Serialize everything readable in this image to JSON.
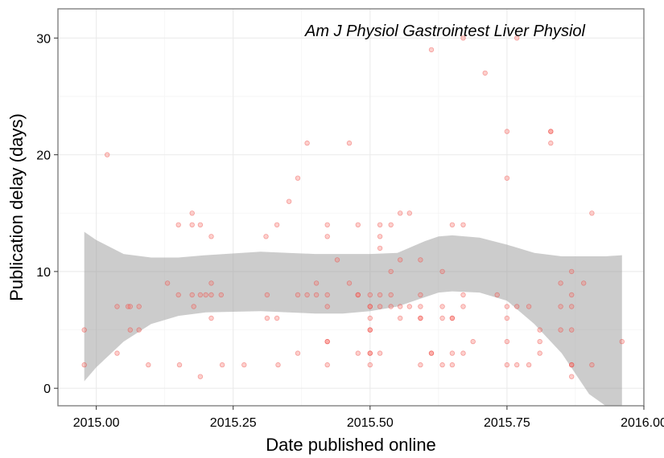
{
  "chart_data": {
    "type": "scatter",
    "title": "",
    "annotation": "Am J Physiol Gastrointest Liver Physiol",
    "xlabel": "Date published online",
    "ylabel": "Publication delay (days)",
    "xlim": [
      2014.93,
      2016.0
    ],
    "ylim": [
      -1.5,
      32.5
    ],
    "x_ticks": [
      2015.0,
      2015.25,
      2015.5,
      2015.75,
      2016.0
    ],
    "x_tick_labels": [
      "2015.00",
      "2015.25",
      "2015.50",
      "2015.75",
      "2016.00"
    ],
    "y_ticks": [
      0,
      10,
      20,
      30
    ],
    "y_tick_labels": [
      "0",
      "10",
      "20",
      "30"
    ],
    "grid": true,
    "colors": {
      "points": "#f8766d",
      "band": "#999999",
      "grid": "#ebebeb",
      "border": "#808080"
    },
    "series": [
      {
        "type": "scatter",
        "points": [
          [
            2014.978,
            5
          ],
          [
            2014.978,
            2
          ],
          [
            2015.02,
            20
          ],
          [
            2015.038,
            7
          ],
          [
            2015.038,
            3
          ],
          [
            2015.058,
            7
          ],
          [
            2015.062,
            7
          ],
          [
            2015.062,
            5
          ],
          [
            2015.078,
            7
          ],
          [
            2015.078,
            5
          ],
          [
            2015.095,
            2
          ],
          [
            2015.13,
            9
          ],
          [
            2015.15,
            14
          ],
          [
            2015.15,
            8
          ],
          [
            2015.152,
            2
          ],
          [
            2015.175,
            15
          ],
          [
            2015.175,
            14
          ],
          [
            2015.175,
            8
          ],
          [
            2015.178,
            7
          ],
          [
            2015.19,
            14
          ],
          [
            2015.19,
            8
          ],
          [
            2015.19,
            1
          ],
          [
            2015.2,
            8
          ],
          [
            2015.21,
            13
          ],
          [
            2015.21,
            9
          ],
          [
            2015.21,
            8
          ],
          [
            2015.21,
            6
          ],
          [
            2015.228,
            8
          ],
          [
            2015.23,
            2
          ],
          [
            2015.27,
            2
          ],
          [
            2015.31,
            13
          ],
          [
            2015.312,
            8
          ],
          [
            2015.312,
            6
          ],
          [
            2015.33,
            14
          ],
          [
            2015.33,
            6
          ],
          [
            2015.332,
            2
          ],
          [
            2015.352,
            16
          ],
          [
            2015.368,
            18
          ],
          [
            2015.368,
            8
          ],
          [
            2015.368,
            3
          ],
          [
            2015.385,
            21
          ],
          [
            2015.385,
            8
          ],
          [
            2015.402,
            9
          ],
          [
            2015.402,
            8
          ],
          [
            2015.422,
            14
          ],
          [
            2015.422,
            13
          ],
          [
            2015.422,
            8
          ],
          [
            2015.422,
            7
          ],
          [
            2015.422,
            4
          ],
          [
            2015.422,
            4
          ],
          [
            2015.422,
            2
          ],
          [
            2015.44,
            11
          ],
          [
            2015.462,
            21
          ],
          [
            2015.462,
            9
          ],
          [
            2015.478,
            14
          ],
          [
            2015.478,
            8
          ],
          [
            2015.478,
            8
          ],
          [
            2015.478,
            3
          ],
          [
            2015.5,
            8
          ],
          [
            2015.5,
            7
          ],
          [
            2015.5,
            7
          ],
          [
            2015.5,
            6
          ],
          [
            2015.5,
            5
          ],
          [
            2015.5,
            5
          ],
          [
            2015.5,
            3
          ],
          [
            2015.5,
            3
          ],
          [
            2015.5,
            2
          ],
          [
            2015.518,
            14
          ],
          [
            2015.518,
            13
          ],
          [
            2015.518,
            12
          ],
          [
            2015.518,
            8
          ],
          [
            2015.518,
            7
          ],
          [
            2015.518,
            3
          ],
          [
            2015.538,
            14
          ],
          [
            2015.538,
            10
          ],
          [
            2015.538,
            8
          ],
          [
            2015.538,
            7
          ],
          [
            2015.555,
            15
          ],
          [
            2015.555,
            11
          ],
          [
            2015.555,
            7
          ],
          [
            2015.555,
            6
          ],
          [
            2015.572,
            15
          ],
          [
            2015.572,
            7
          ],
          [
            2015.592,
            11
          ],
          [
            2015.592,
            8
          ],
          [
            2015.592,
            7
          ],
          [
            2015.592,
            6
          ],
          [
            2015.592,
            6
          ],
          [
            2015.592,
            2
          ],
          [
            2015.612,
            29
          ],
          [
            2015.612,
            3
          ],
          [
            2015.612,
            3
          ],
          [
            2015.632,
            10
          ],
          [
            2015.632,
            7
          ],
          [
            2015.632,
            6
          ],
          [
            2015.632,
            2
          ],
          [
            2015.65,
            14
          ],
          [
            2015.65,
            6
          ],
          [
            2015.65,
            6
          ],
          [
            2015.65,
            3
          ],
          [
            2015.65,
            2
          ],
          [
            2015.67,
            30
          ],
          [
            2015.67,
            14
          ],
          [
            2015.67,
            8
          ],
          [
            2015.67,
            7
          ],
          [
            2015.67,
            3
          ],
          [
            2015.688,
            4
          ],
          [
            2015.71,
            27
          ],
          [
            2015.732,
            8
          ],
          [
            2015.75,
            22
          ],
          [
            2015.75,
            18
          ],
          [
            2015.75,
            7
          ],
          [
            2015.75,
            6
          ],
          [
            2015.75,
            4
          ],
          [
            2015.75,
            2
          ],
          [
            2015.768,
            30
          ],
          [
            2015.768,
            7
          ],
          [
            2015.768,
            2
          ],
          [
            2015.79,
            7
          ],
          [
            2015.79,
            2
          ],
          [
            2015.81,
            5
          ],
          [
            2015.81,
            4
          ],
          [
            2015.81,
            3
          ],
          [
            2015.83,
            22
          ],
          [
            2015.83,
            22
          ],
          [
            2015.83,
            21
          ],
          [
            2015.848,
            9
          ],
          [
            2015.848,
            7
          ],
          [
            2015.848,
            5
          ],
          [
            2015.868,
            10
          ],
          [
            2015.868,
            8
          ],
          [
            2015.868,
            7
          ],
          [
            2015.868,
            5
          ],
          [
            2015.868,
            2
          ],
          [
            2015.868,
            2
          ],
          [
            2015.868,
            1
          ],
          [
            2015.89,
            9
          ],
          [
            2015.905,
            15
          ],
          [
            2015.905,
            2
          ],
          [
            2015.96,
            4
          ]
        ]
      },
      {
        "type": "smooth-confidence-band",
        "x": [
          2014.978,
          2015.0,
          2015.05,
          2015.1,
          2015.15,
          2015.2,
          2015.3,
          2015.35,
          2015.4,
          2015.45,
          2015.5,
          2015.55,
          2015.6,
          2015.625,
          2015.65,
          2015.7,
          2015.75,
          2015.8,
          2015.85,
          2015.9,
          2015.93,
          2015.96
        ],
        "lower": [
          0.6,
          1.8,
          4.0,
          5.5,
          6.2,
          6.5,
          6.6,
          6.5,
          6.4,
          6.4,
          6.6,
          7.0,
          7.8,
          8.2,
          8.3,
          8.2,
          7.5,
          5.5,
          3.0,
          -0.5,
          -2.0,
          -4.0
        ],
        "upper": [
          13.4,
          12.7,
          11.5,
          11.2,
          11.2,
          11.4,
          11.7,
          11.6,
          11.5,
          11.5,
          11.5,
          11.6,
          12.6,
          13.0,
          13.1,
          12.9,
          12.3,
          11.6,
          11.3,
          11.3,
          11.3,
          11.4
        ]
      }
    ]
  }
}
